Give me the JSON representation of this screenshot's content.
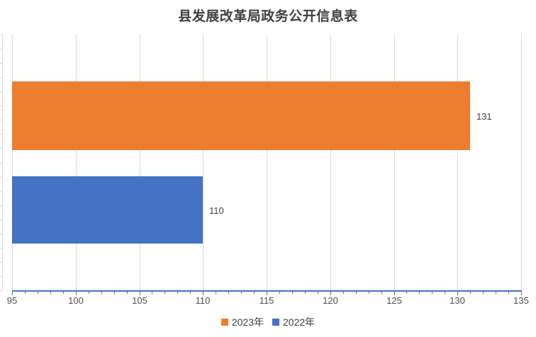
{
  "chart_data": {
    "type": "bar",
    "orientation": "horizontal",
    "title": "县发展改革局政务公开信息表",
    "categories": [
      ""
    ],
    "series": [
      {
        "name": "2023年",
        "values": [
          131
        ],
        "color": "#ED7D31"
      },
      {
        "name": "2022年",
        "values": [
          110
        ],
        "color": "#4472C4"
      }
    ],
    "data_labels": [
      "131",
      "110"
    ],
    "xlim": [
      95,
      135
    ],
    "x_major_tick_interval": 5,
    "x_minor_tick_interval": 1,
    "x_tick_labels": [
      "95",
      "100",
      "105",
      "110",
      "115",
      "120",
      "125",
      "130",
      "135"
    ],
    "grid": true,
    "legend_position": "bottom",
    "legend": [
      "2023年",
      "2022年"
    ]
  },
  "colors": {
    "value_axis_line": "#4472C4",
    "category_axis_line": "#D9D9D9",
    "gridline": "#D9D9D9",
    "title_text": "#3F3F3F",
    "tick_label_text": "#4D4D4D",
    "data_label_text": "#404040",
    "background": "#FFFFFF"
  }
}
